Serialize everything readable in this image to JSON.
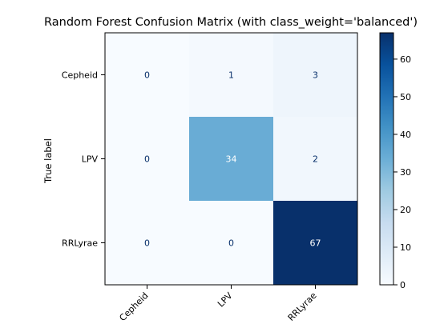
{
  "chart_data": {
    "type": "heatmap",
    "title": "Random Forest Confusion Matrix (with class_weight='balanced')",
    "ylabel": "True label",
    "xlabel": "",
    "x_categories": [
      "Cepheid",
      "LPV",
      "RRLyrae"
    ],
    "y_categories": [
      "Cepheid",
      "LPV",
      "RRLyrae"
    ],
    "values": [
      [
        0,
        1,
        3
      ],
      [
        0,
        34,
        2
      ],
      [
        0,
        0,
        67
      ]
    ],
    "colorbar": {
      "range": [
        0,
        67
      ],
      "ticks": [
        0,
        10,
        20,
        30,
        40,
        50,
        60
      ]
    },
    "colormap": "Blues",
    "text_colors": {
      "light_background": "#08306b",
      "dark_background": "#ffffff"
    }
  }
}
